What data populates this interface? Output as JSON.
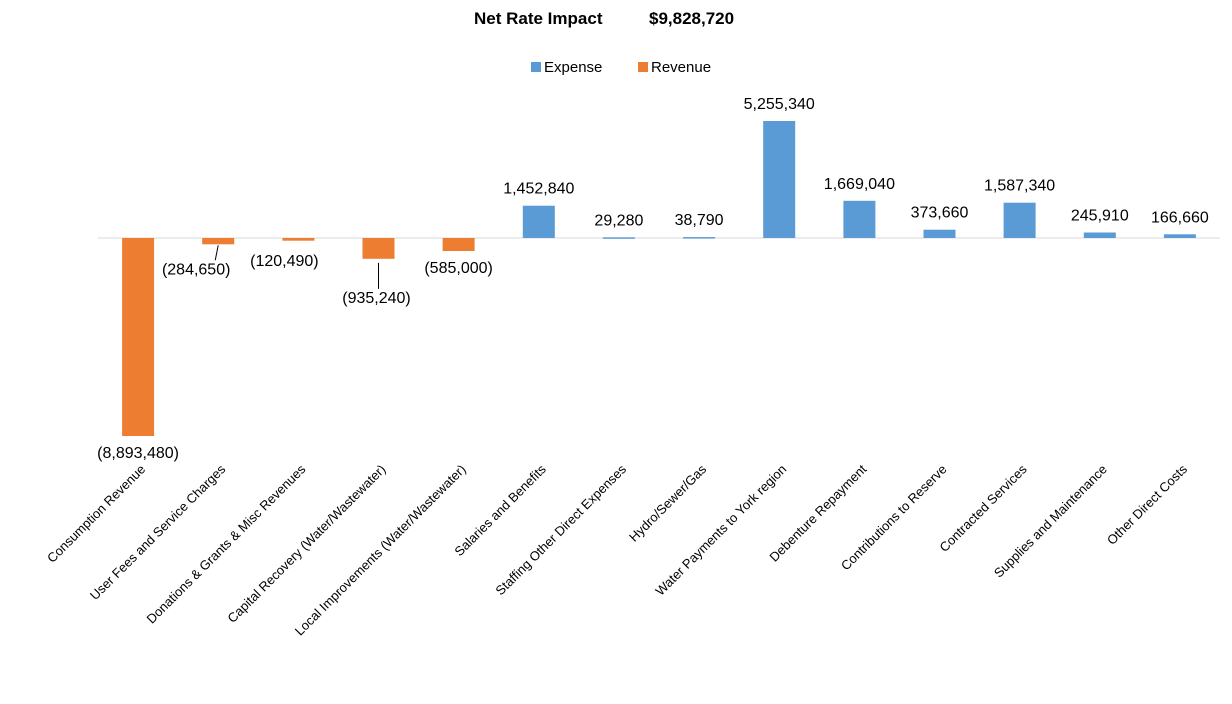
{
  "chart_data": {
    "type": "bar",
    "title": "Net Rate Impact",
    "title_value": "$9,828,720",
    "legend_position": "top",
    "grid": false,
    "series": [
      {
        "name": "Expense",
        "color": "#5B9BD5"
      },
      {
        "name": "Revenue",
        "color": "#ED7D31"
      }
    ],
    "categories": [
      "Consumption Revenue",
      "User Fees and Service Charges",
      "Donations & Grants & Misc Revenues",
      "Capital Recovery (Water/Wastewater)",
      "Local Improvements (Water/Wastewater)",
      "Salaries and Benefits",
      "Staffing Other Direct Expenses",
      "Hydro/Sewer/Gas",
      "Water Payments to York region",
      "Debenture Repayment",
      "Contributions to Reserve",
      "Contracted Services",
      "Supplies and Maintenance",
      "Other Direct Costs"
    ],
    "values": [
      -8893480,
      -284650,
      -120490,
      -935240,
      -585000,
      1452840,
      29280,
      38790,
      5255340,
      1669040,
      373660,
      1587340,
      245910,
      166660
    ],
    "value_series": [
      "Revenue",
      "Revenue",
      "Revenue",
      "Revenue",
      "Revenue",
      "Expense",
      "Expense",
      "Expense",
      "Expense",
      "Expense",
      "Expense",
      "Expense",
      "Expense",
      "Expense"
    ],
    "data_labels": [
      "(8,893,480)",
      "(284,650)",
      "(120,490)",
      "(935,240)",
      "(585,000)",
      "1,452,840",
      "29,280",
      "38,790",
      "5,255,340",
      "1,669,040",
      "373,660",
      "1,587,340",
      "245,910",
      "166,660"
    ]
  }
}
